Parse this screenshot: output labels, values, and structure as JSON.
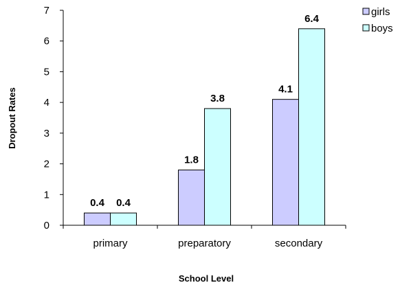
{
  "chart_data": {
    "type": "bar",
    "title": "",
    "xlabel": "School Level",
    "ylabel": "Dropout Rates",
    "categories": [
      "primary",
      "preparatory",
      "secondary"
    ],
    "series": [
      {
        "name": "girls",
        "values": [
          0.4,
          1.8,
          4.1
        ],
        "labels": [
          "0.4",
          "1.8",
          "4.1"
        ],
        "color": "#ccccff"
      },
      {
        "name": "boys",
        "values": [
          0.4,
          3.8,
          6.4
        ],
        "labels": [
          "0.4",
          "3.8",
          "6.4"
        ],
        "color": "#ccffff"
      }
    ],
    "ylim": [
      0,
      7
    ],
    "yticks": [
      "0",
      "1",
      "2",
      "3",
      "4",
      "5",
      "6",
      "7"
    ],
    "grid": false,
    "legend_position": "top-right"
  }
}
